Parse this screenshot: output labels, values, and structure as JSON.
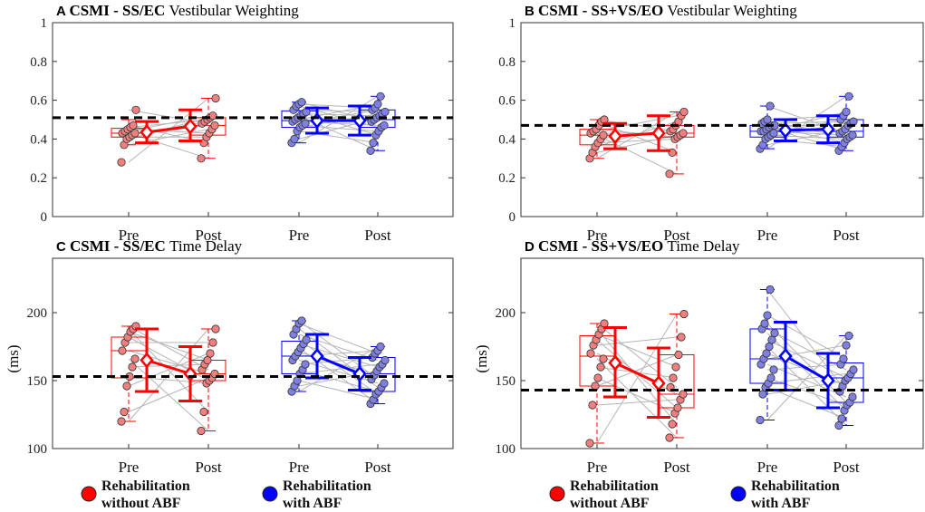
{
  "chart_data": [
    {
      "type": "box",
      "panel": "A",
      "title_bold": "CSMI - SS/EC",
      "title_suffix": "Vestibular Weighting",
      "ylabel": "",
      "ylim": [
        0,
        1
      ],
      "yticks": [
        0,
        0.2,
        0.4,
        0.6,
        0.8,
        1
      ],
      "ytick_labels": [
        "0",
        "0.2",
        "0.4",
        "0.6",
        "0.8",
        "1"
      ],
      "reference_line": 0.51,
      "groups": [
        {
          "name": "Rehabilitation without ABF",
          "color": "#ff0000",
          "fill": "#f08080",
          "pre": {
            "q1": 0.41,
            "median": 0.43,
            "q3": 0.455,
            "whisker_low": 0.37,
            "whisker_high": 0.5,
            "mean": 0.435,
            "sd_low": 0.38,
            "sd_high": 0.49,
            "points": [
              0.28,
              0.37,
              0.4,
              0.41,
              0.42,
              0.43,
              0.43,
              0.44,
              0.45,
              0.46,
              0.47,
              0.55
            ]
          },
          "post": {
            "q1": 0.42,
            "median": 0.47,
            "q3": 0.51,
            "whisker_low": 0.3,
            "whisker_high": 0.61,
            "mean": 0.465,
            "sd_low": 0.39,
            "sd_high": 0.55,
            "points": [
              0.3,
              0.38,
              0.41,
              0.43,
              0.45,
              0.47,
              0.48,
              0.49,
              0.5,
              0.51,
              0.52,
              0.61
            ]
          }
        },
        {
          "name": "Rehabilitation with ABF",
          "color": "#0000ff",
          "fill": "#8080e0",
          "pre": {
            "q1": 0.46,
            "median": 0.495,
            "q3": 0.545,
            "whisker_low": 0.38,
            "whisker_high": 0.59,
            "mean": 0.495,
            "sd_low": 0.43,
            "sd_high": 0.56,
            "points": [
              0.38,
              0.4,
              0.44,
              0.46,
              0.47,
              0.48,
              0.49,
              0.5,
              0.51,
              0.52,
              0.53,
              0.54,
              0.55,
              0.57,
              0.58,
              0.59
            ]
          },
          "post": {
            "q1": 0.46,
            "median": 0.5,
            "q3": 0.55,
            "whisker_low": 0.34,
            "whisker_high": 0.62,
            "mean": 0.495,
            "sd_low": 0.42,
            "sd_high": 0.57,
            "points": [
              0.34,
              0.38,
              0.42,
              0.44,
              0.46,
              0.47,
              0.49,
              0.5,
              0.51,
              0.52,
              0.53,
              0.54,
              0.55,
              0.56,
              0.58,
              0.62
            ]
          }
        }
      ]
    },
    {
      "type": "box",
      "panel": "B",
      "title_bold": "CSMI - SS+VS/EO",
      "title_suffix": "Vestibular Weighting",
      "ylabel": "",
      "ylim": [
        0,
        1
      ],
      "yticks": [
        0,
        0.2,
        0.4,
        0.6,
        0.8,
        1
      ],
      "ytick_labels": [
        "0",
        "0.2",
        "0.4",
        "0.6",
        "0.8",
        "1"
      ],
      "reference_line": 0.47,
      "groups": [
        {
          "name": "Rehabilitation without ABF",
          "color": "#ff0000",
          "fill": "#f08080",
          "pre": {
            "q1": 0.37,
            "median": 0.42,
            "q3": 0.45,
            "whisker_low": 0.3,
            "whisker_high": 0.5,
            "mean": 0.415,
            "sd_low": 0.35,
            "sd_high": 0.48,
            "points": [
              0.3,
              0.33,
              0.36,
              0.38,
              0.4,
              0.42,
              0.43,
              0.44,
              0.45,
              0.47,
              0.49,
              0.5
            ]
          },
          "post": {
            "q1": 0.41,
            "median": 0.43,
            "q3": 0.47,
            "whisker_low": 0.22,
            "whisker_high": 0.54,
            "mean": 0.43,
            "sd_low": 0.34,
            "sd_high": 0.52,
            "points": [
              0.22,
              0.33,
              0.4,
              0.41,
              0.42,
              0.43,
              0.44,
              0.45,
              0.47,
              0.49,
              0.52,
              0.54
            ]
          }
        },
        {
          "name": "Rehabilitation with ABF",
          "color": "#0000ff",
          "fill": "#8080e0",
          "pre": {
            "q1": 0.41,
            "median": 0.44,
            "q3": 0.47,
            "whisker_low": 0.35,
            "whisker_high": 0.57,
            "mean": 0.445,
            "sd_low": 0.39,
            "sd_high": 0.5,
            "points": [
              0.35,
              0.37,
              0.4,
              0.41,
              0.42,
              0.43,
              0.44,
              0.44,
              0.45,
              0.46,
              0.47,
              0.47,
              0.48,
              0.49,
              0.5,
              0.57
            ]
          },
          "post": {
            "q1": 0.41,
            "median": 0.44,
            "q3": 0.5,
            "whisker_low": 0.34,
            "whisker_high": 0.62,
            "mean": 0.45,
            "sd_low": 0.38,
            "sd_high": 0.52,
            "points": [
              0.34,
              0.36,
              0.38,
              0.4,
              0.41,
              0.42,
              0.43,
              0.44,
              0.45,
              0.47,
              0.48,
              0.49,
              0.5,
              0.52,
              0.54,
              0.62
            ]
          }
        }
      ]
    },
    {
      "type": "box",
      "panel": "C",
      "title_bold": "CSMI - SS/EC",
      "title_suffix": "Time Delay",
      "ylabel": "(ms)",
      "ylim": [
        100,
        240
      ],
      "yticks": [
        100,
        150,
        200
      ],
      "ytick_labels": [
        "100",
        "150",
        "200"
      ],
      "reference_line": 153,
      "groups": [
        {
          "name": "Rehabilitation without ABF",
          "color": "#ff0000",
          "fill": "#f08080",
          "pre": {
            "q1": 152,
            "median": 172,
            "q3": 182,
            "whisker_low": 120,
            "whisker_high": 190,
            "mean": 165,
            "sd_low": 142,
            "sd_high": 188,
            "points": [
              120,
              127,
              146,
              153,
              160,
              166,
              172,
              178,
              182,
              186,
              188,
              190
            ]
          },
          "post": {
            "q1": 150,
            "median": 155,
            "q3": 165,
            "whisker_low": 113,
            "whisker_high": 188,
            "mean": 155,
            "sd_low": 135,
            "sd_high": 175,
            "points": [
              113,
              127,
              148,
              150,
              152,
              155,
              158,
              162,
              165,
              170,
              178,
              188
            ]
          }
        },
        {
          "name": "Rehabilitation with ABF",
          "color": "#0000ff",
          "fill": "#8080e0",
          "pre": {
            "q1": 155,
            "median": 168,
            "q3": 179,
            "whisker_low": 142,
            "whisker_high": 194,
            "mean": 168,
            "sd_low": 152,
            "sd_high": 184,
            "points": [
              142,
              146,
              150,
              155,
              158,
              162,
              165,
              168,
              171,
              174,
              177,
              180,
              184,
              188,
              192,
              194
            ]
          },
          "post": {
            "q1": 142,
            "median": 155,
            "q3": 167,
            "whisker_low": 133,
            "whisker_high": 175,
            "mean": 155,
            "sd_low": 143,
            "sd_high": 167,
            "points": [
              133,
              136,
              140,
              142,
              145,
              148,
              151,
              154,
              157,
              160,
              162,
              165,
              167,
              170,
              172,
              175
            ]
          }
        }
      ]
    },
    {
      "type": "box",
      "panel": "D",
      "title_bold": "CSMI - SS+VS/EO",
      "title_suffix": "Time Delay",
      "ylabel": "(ms)",
      "ylim": [
        100,
        240
      ],
      "yticks": [
        100,
        150,
        200
      ],
      "ytick_labels": [
        "100",
        "150",
        "200"
      ],
      "reference_line": 143,
      "groups": [
        {
          "name": "Rehabilitation without ABF",
          "color": "#ff0000",
          "fill": "#f08080",
          "pre": {
            "q1": 146,
            "median": 168,
            "q3": 183,
            "whisker_low": 104,
            "whisker_high": 192,
            "mean": 163,
            "sd_low": 138,
            "sd_high": 189,
            "points": [
              104,
              132,
              146,
              152,
              160,
              166,
              170,
              176,
              180,
              184,
              188,
              192
            ]
          },
          "post": {
            "q1": 130,
            "median": 140,
            "q3": 169,
            "whisker_low": 108,
            "whisker_high": 199,
            "mean": 148,
            "sd_low": 123,
            "sd_high": 174,
            "points": [
              108,
              118,
              126,
              130,
              136,
              140,
              145,
              152,
              160,
              169,
              182,
              199
            ]
          }
        },
        {
          "name": "Rehabilitation with ABF",
          "color": "#0000ff",
          "fill": "#8080e0",
          "pre": {
            "q1": 148,
            "median": 166,
            "q3": 188,
            "whisker_low": 121,
            "whisker_high": 217,
            "mean": 168,
            "sd_low": 143,
            "sd_high": 193,
            "points": [
              121,
              140,
              145,
              148,
              152,
              158,
              162,
              166,
              170,
              175,
              180,
              185,
              188,
              192,
              198,
              217
            ]
          },
          "post": {
            "q1": 134,
            "median": 152,
            "q3": 163,
            "whisker_low": 117,
            "whisker_high": 183,
            "mean": 150,
            "sd_low": 130,
            "sd_high": 170,
            "points": [
              117,
              122,
              128,
              132,
              134,
              138,
              142,
              146,
              150,
              152,
              155,
              158,
              162,
              166,
              176,
              183
            ]
          }
        }
      ]
    }
  ],
  "x_labels": {
    "pre": "Pre",
    "post": "Post"
  },
  "legend": [
    {
      "label_line1": "Rehabilitation",
      "label_line2": "without ABF",
      "color": "#ff0000"
    },
    {
      "label_line1": "Rehabilitation",
      "label_line2": "with ABF",
      "color": "#0000ff"
    }
  ]
}
